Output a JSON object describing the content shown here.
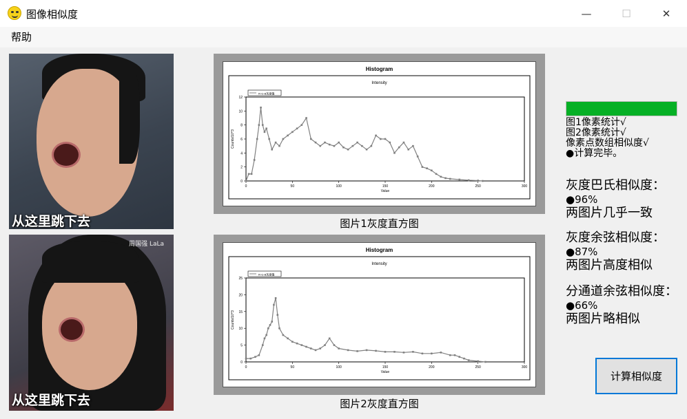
{
  "window": {
    "title": "图像相似度",
    "minimize": "—",
    "maximize": "☐",
    "close": "✕"
  },
  "menu": {
    "help": "帮助"
  },
  "images": [
    {
      "caption": "从这里跳下去"
    },
    {
      "caption": "从这里跳下去",
      "watermark": "周国强 LaLa"
    }
  ],
  "charts": [
    {
      "caption": "图片1灰度直方图",
      "chart_data": {
        "type": "line",
        "title": "Histogram",
        "subtitle": "Intensity",
        "legend": "R-G-B灰度值",
        "legend_position": "top-left",
        "xlabel": "Value",
        "ylabel": "Counts/10^3",
        "xlim": [
          0,
          300
        ],
        "ylim": [
          0,
          12
        ],
        "xticks": [
          0,
          50,
          100,
          150,
          200,
          250,
          300
        ],
        "yticks": [
          0,
          2,
          4,
          6,
          8,
          10,
          12
        ],
        "grid": false,
        "series": [
          {
            "name": "R-G-B灰度值",
            "color": "#808080",
            "x": [
              0,
              3,
              6,
              9,
              12,
              14,
              16,
              18,
              20,
              22,
              25,
              28,
              32,
              36,
              40,
              45,
              50,
              55,
              60,
              65,
              70,
              75,
              80,
              85,
              90,
              95,
              100,
              105,
              110,
              115,
              120,
              125,
              130,
              135,
              140,
              145,
              150,
              155,
              160,
              165,
              170,
              175,
              180,
              185,
              190,
              195,
              200,
              205,
              210,
              215,
              220,
              230,
              240,
              250,
              255
            ],
            "y": [
              0,
              1,
              1,
              3,
              6,
              8,
              10.5,
              8,
              7,
              7.5,
              6,
              4.5,
              5.5,
              5,
              6,
              6.5,
              7,
              7.5,
              8,
              9,
              6,
              5.5,
              5,
              5.5,
              5.2,
              5,
              5.5,
              4.8,
              4.5,
              5,
              5.5,
              5,
              4.5,
              5,
              6.5,
              6,
              6,
              5.5,
              4,
              4.8,
              5.5,
              4.5,
              5,
              3.5,
              2,
              1.8,
              1.5,
              1,
              0.6,
              0.4,
              0.3,
              0.2,
              0.1,
              0.05,
              0
            ]
          }
        ]
      }
    },
    {
      "caption": "图片2灰度直方图",
      "chart_data": {
        "type": "line",
        "title": "Histogram",
        "subtitle": "Intensity",
        "legend": "R-G-B灰度值",
        "legend_position": "top-left",
        "xlabel": "Value",
        "ylabel": "Counts/10^3",
        "xlim": [
          0,
          300
        ],
        "ylim": [
          0,
          25
        ],
        "xticks": [
          0,
          50,
          100,
          150,
          200,
          250,
          300
        ],
        "yticks": [
          0,
          5,
          10,
          15,
          20,
          25
        ],
        "grid": false,
        "series": [
          {
            "name": "R-G-B灰度值",
            "color": "#808080",
            "x": [
              0,
              5,
              10,
              14,
              18,
              20,
              22,
              24,
              26,
              28,
              30,
              32,
              34,
              36,
              40,
              45,
              50,
              55,
              60,
              65,
              70,
              75,
              80,
              85,
              90,
              95,
              100,
              110,
              120,
              130,
              140,
              150,
              160,
              170,
              180,
              190,
              200,
              210,
              220,
              225,
              230,
              235,
              240,
              250,
              258
            ],
            "y": [
              1,
              1,
              1.5,
              2,
              5,
              7,
              8,
              10,
              11,
              12,
              17,
              19,
              14,
              10,
              8,
              7,
              6,
              5.5,
              5,
              4.5,
              4,
              3.5,
              4,
              5,
              7,
              5,
              4,
              3.5,
              3.2,
              3.5,
              3.3,
              3,
              3,
              2.8,
              3,
              2.5,
              2.5,
              2.8,
              2,
              2,
              1.5,
              1,
              0.5,
              0.2,
              0
            ]
          }
        ]
      }
    }
  ],
  "progress": {
    "value": 1.0,
    "color": "#06b025"
  },
  "status": [
    "图1像素统计√",
    "图2像素统计√",
    "像素点数组相似度√",
    "●计算完毕。"
  ],
  "metrics": [
    {
      "label": "灰度巴氏相似度：",
      "value": "●96%",
      "verdict": "两图片几乎一致"
    },
    {
      "label": "灰度余弦相似度：",
      "value": "●87%",
      "verdict": "两图片高度相似"
    },
    {
      "label": "分通道余弦相似度：",
      "value": "●66%",
      "verdict": "两图片略相似"
    }
  ],
  "button": {
    "calculate": "计算相似度"
  }
}
